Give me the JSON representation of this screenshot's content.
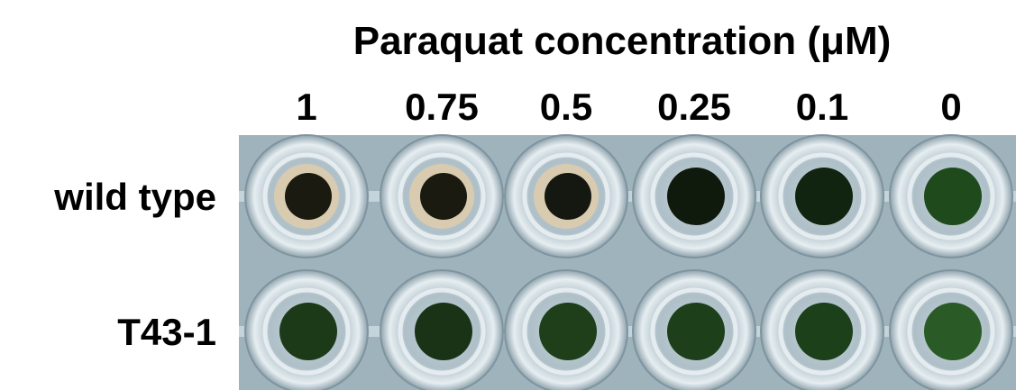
{
  "title": "Paraquat concentration (μM)",
  "columns": [
    "1",
    "0.75",
    "0.5",
    "0.25",
    "0.1",
    "0"
  ],
  "rows": [
    "wild type",
    "T43-1"
  ]
}
